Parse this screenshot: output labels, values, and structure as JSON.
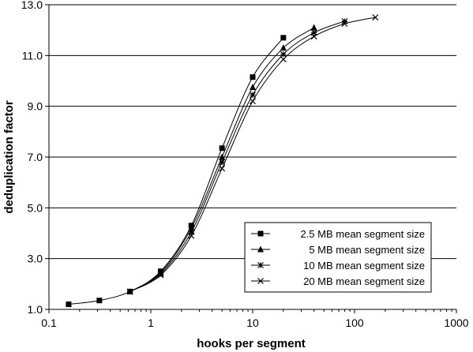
{
  "chart_data": {
    "type": "line",
    "title": "",
    "xlabel": "hooks per segment",
    "ylabel": "deduplication factor",
    "x_scale": "log",
    "xlim": [
      0.1,
      1000
    ],
    "ylim": [
      1.0,
      13.0
    ],
    "x_ticks": [
      "0.1",
      "1",
      "10",
      "100",
      "1000"
    ],
    "y_ticks": [
      "1.0",
      "3.0",
      "5.0",
      "7.0",
      "9.0",
      "11.0",
      "13.0"
    ],
    "grid": "horizontal",
    "legend_position": "bottom-right",
    "series": [
      {
        "name": "2.5 MB mean segment size",
        "marker": "square",
        "points": [
          [
            0.156,
            1.2
          ],
          [
            0.3125,
            1.35
          ],
          [
            0.625,
            1.7
          ],
          [
            1.25,
            2.5
          ],
          [
            2.5,
            4.3
          ],
          [
            5,
            7.35
          ],
          [
            10,
            10.15
          ],
          [
            20,
            11.7
          ]
        ]
      },
      {
        "name": "5 MB mean segment size",
        "marker": "triangle",
        "points": [
          [
            0.625,
            1.7
          ],
          [
            1.25,
            2.45
          ],
          [
            2.5,
            4.2
          ],
          [
            5,
            7.0
          ],
          [
            10,
            9.75
          ],
          [
            20,
            11.3
          ],
          [
            40,
            12.1
          ]
        ]
      },
      {
        "name": "10 MB mean segment size",
        "marker": "asterisk",
        "points": [
          [
            0.625,
            1.7
          ],
          [
            1.25,
            2.4
          ],
          [
            2.5,
            4.05
          ],
          [
            5,
            6.8
          ],
          [
            10,
            9.45
          ],
          [
            20,
            11.05
          ],
          [
            40,
            11.9
          ],
          [
            80,
            12.35
          ]
        ]
      },
      {
        "name": "20 MB mean segment size",
        "marker": "x",
        "points": [
          [
            0.625,
            1.7
          ],
          [
            1.25,
            2.35
          ],
          [
            2.5,
            3.9
          ],
          [
            5,
            6.55
          ],
          [
            10,
            9.2
          ],
          [
            20,
            10.85
          ],
          [
            40,
            11.75
          ],
          [
            80,
            12.25
          ],
          [
            160,
            12.5
          ]
        ]
      }
    ]
  }
}
